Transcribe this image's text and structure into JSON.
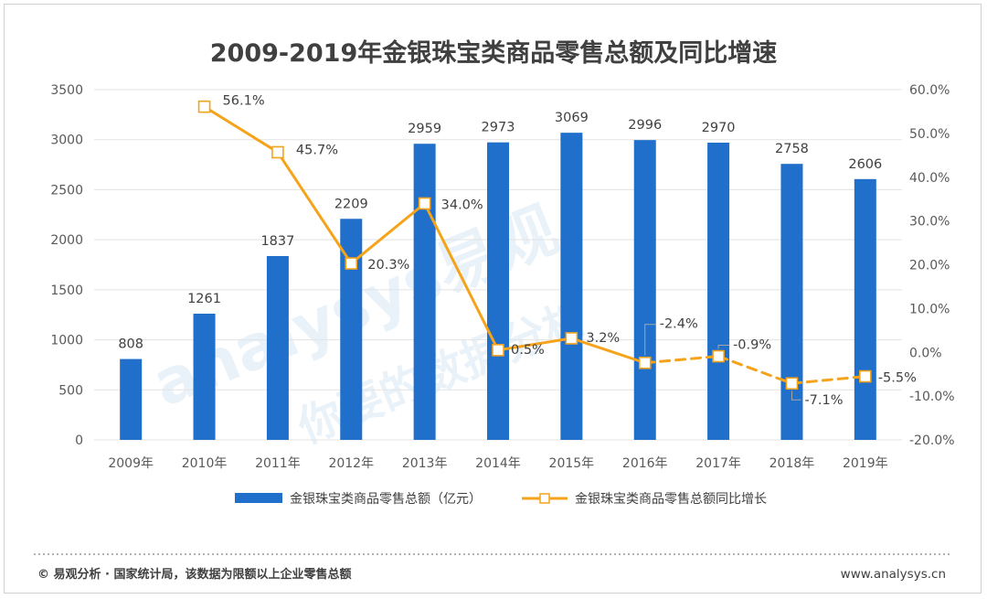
{
  "chart_data": {
    "type": "bar",
    "title": "2009-2019年金银珠宝类商品零售总额及同比增速",
    "categories": [
      "2009年",
      "2010年",
      "2011年",
      "2012年",
      "2013年",
      "2014年",
      "2015年",
      "2016年",
      "2017年",
      "2018年",
      "2019年"
    ],
    "series": [
      {
        "name": "金银珠宝类商品零售总额（亿元）",
        "type": "bar",
        "axis": "left",
        "color": "#1f6fcb",
        "values": [
          808,
          1261,
          1837,
          2209,
          2959,
          2973,
          3069,
          2996,
          2970,
          2758,
          2606
        ],
        "labels": [
          "808",
          "1261",
          "1837",
          "2209",
          "2959",
          "2973",
          "3069",
          "2996",
          "2970",
          "2758",
          "2606"
        ]
      },
      {
        "name": "金银珠宝类商品零售总额同比增长",
        "type": "line",
        "axis": "right",
        "color": "#f5a31a",
        "values": [
          null,
          56.1,
          45.7,
          20.3,
          34.0,
          0.5,
          3.2,
          -2.4,
          -0.9,
          -7.1,
          -5.5
        ],
        "labels": [
          "",
          "56.1%",
          "45.7%",
          "20.3%",
          "34.0%",
          "0.5%",
          "3.2%",
          "-2.4%",
          "-0.9%",
          "-7.1%",
          "-5.5%"
        ],
        "dashed_from_index": 7
      }
    ],
    "y_left": {
      "range": [
        0,
        3500
      ],
      "ticks": [
        "0",
        "500",
        "1000",
        "1500",
        "2000",
        "2500",
        "3000",
        "3500"
      ]
    },
    "y_right": {
      "range": [
        -20,
        60
      ],
      "ticks": [
        "-20.0%",
        "-10.0%",
        "0.0%",
        "10.0%",
        "20.0%",
        "30.0%",
        "40.0%",
        "50.0%",
        "60.0%"
      ]
    },
    "grid": true,
    "legend_position": "bottom"
  },
  "footer": {
    "source": "© 易观分析 · 国家统计局，该数据为限额以上企业零售总额",
    "site": "www.analysys.cn"
  },
  "watermark": {
    "brand": "analysys易观",
    "slogan": "你要的数据分析"
  },
  "colors": {
    "bar": "#1f6fcb",
    "line": "#f5a31a",
    "grid": "#e3e3e3",
    "text": "#404040"
  }
}
